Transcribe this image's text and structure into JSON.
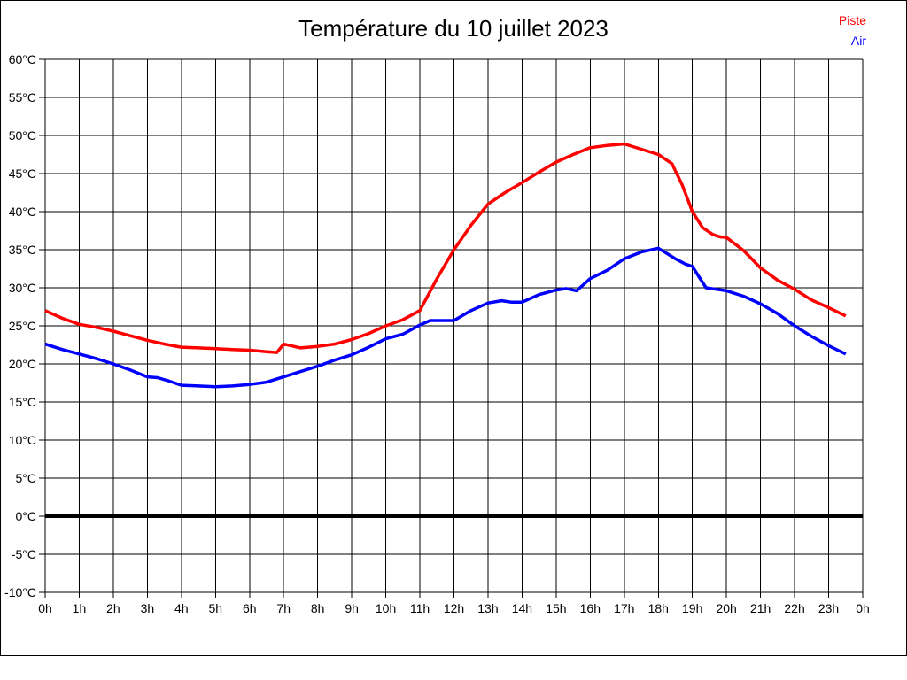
{
  "page": {
    "background": "#ffffff",
    "frame_border_color": "#000000"
  },
  "chart_data": {
    "type": "line",
    "title": "Température du 10 juillet 2023",
    "title_color": "#000000",
    "grid": true,
    "grid_color": "#000000",
    "x_axis": {
      "unit": "h",
      "range": [
        0,
        24
      ],
      "ticks": [
        {
          "value": 0,
          "label": "0h"
        },
        {
          "value": 1,
          "label": "1h"
        },
        {
          "value": 2,
          "label": "2h"
        },
        {
          "value": 3,
          "label": "3h"
        },
        {
          "value": 4,
          "label": "4h"
        },
        {
          "value": 5,
          "label": "5h"
        },
        {
          "value": 6,
          "label": "6h"
        },
        {
          "value": 7,
          "label": "7h"
        },
        {
          "value": 8,
          "label": "8h"
        },
        {
          "value": 9,
          "label": "9h"
        },
        {
          "value": 10,
          "label": "10h"
        },
        {
          "value": 11,
          "label": "11h"
        },
        {
          "value": 12,
          "label": "12h"
        },
        {
          "value": 13,
          "label": "13h"
        },
        {
          "value": 14,
          "label": "14h"
        },
        {
          "value": 15,
          "label": "15h"
        },
        {
          "value": 16,
          "label": "16h"
        },
        {
          "value": 17,
          "label": "17h"
        },
        {
          "value": 18,
          "label": "18h"
        },
        {
          "value": 19,
          "label": "19h"
        },
        {
          "value": 20,
          "label": "20h"
        },
        {
          "value": 21,
          "label": "21h"
        },
        {
          "value": 22,
          "label": "22h"
        },
        {
          "value": 23,
          "label": "23h"
        },
        {
          "value": 24,
          "label": "0h"
        }
      ]
    },
    "y_axis": {
      "unit": "°C",
      "range": [
        -10,
        60
      ],
      "zero_line_bold": true,
      "ticks": [
        {
          "value": 60,
          "label": "60°C"
        },
        {
          "value": 55,
          "label": "55°C"
        },
        {
          "value": 50,
          "label": "50°C"
        },
        {
          "value": 45,
          "label": "45°C"
        },
        {
          "value": 40,
          "label": "40°C"
        },
        {
          "value": 35,
          "label": "35°C"
        },
        {
          "value": 30,
          "label": "30°C"
        },
        {
          "value": 25,
          "label": "25°C"
        },
        {
          "value": 20,
          "label": "20°C"
        },
        {
          "value": 15,
          "label": "15°C"
        },
        {
          "value": 10,
          "label": "10°C"
        },
        {
          "value": 5,
          "label": "5°C"
        },
        {
          "value": 0,
          "label": "0°C"
        },
        {
          "value": -5,
          "label": "-5°C"
        },
        {
          "value": -10,
          "label": "-10°C"
        }
      ]
    },
    "legend": {
      "position": "top-right",
      "entries": [
        {
          "label": "Piste",
          "color": "#ff0000"
        },
        {
          "label": "Air",
          "color": "#0000ff"
        }
      ]
    },
    "series": [
      {
        "name": "Piste",
        "color": "#ff0000",
        "points": [
          [
            0,
            27.0
          ],
          [
            0.5,
            26.0
          ],
          [
            1,
            25.2
          ],
          [
            1.5,
            24.8
          ],
          [
            2,
            24.3
          ],
          [
            2.5,
            23.7
          ],
          [
            3,
            23.1
          ],
          [
            3.5,
            22.6
          ],
          [
            4,
            22.2
          ],
          [
            4.5,
            22.1
          ],
          [
            5,
            22.0
          ],
          [
            5.5,
            21.9
          ],
          [
            6,
            21.8
          ],
          [
            6.5,
            21.6
          ],
          [
            6.8,
            21.5
          ],
          [
            7,
            22.6
          ],
          [
            7.3,
            22.3
          ],
          [
            7.5,
            22.1
          ],
          [
            8,
            22.3
          ],
          [
            8.5,
            22.6
          ],
          [
            9,
            23.2
          ],
          [
            9.5,
            24.0
          ],
          [
            10,
            25.0
          ],
          [
            10.5,
            25.8
          ],
          [
            11,
            27.0
          ],
          [
            11.5,
            31.2
          ],
          [
            12,
            35.0
          ],
          [
            12.5,
            38.2
          ],
          [
            13,
            41.0
          ],
          [
            13.5,
            42.5
          ],
          [
            14,
            43.8
          ],
          [
            14.5,
            45.2
          ],
          [
            15,
            46.5
          ],
          [
            15.5,
            47.5
          ],
          [
            16,
            48.4
          ],
          [
            16.5,
            48.7
          ],
          [
            17,
            48.9
          ],
          [
            17.5,
            48.2
          ],
          [
            18,
            47.5
          ],
          [
            18.4,
            46.3
          ],
          [
            18.7,
            43.5
          ],
          [
            19,
            40.0
          ],
          [
            19.3,
            37.9
          ],
          [
            19.6,
            37.0
          ],
          [
            19.8,
            36.7
          ],
          [
            20,
            36.6
          ],
          [
            20.5,
            34.9
          ],
          [
            21,
            32.6
          ],
          [
            21.5,
            31.0
          ],
          [
            22,
            29.8
          ],
          [
            22.5,
            28.4
          ],
          [
            23,
            27.4
          ],
          [
            23.5,
            26.3
          ]
        ]
      },
      {
        "name": "Air",
        "color": "#0000ff",
        "points": [
          [
            0,
            22.6
          ],
          [
            0.5,
            21.9
          ],
          [
            1,
            21.3
          ],
          [
            1.5,
            20.7
          ],
          [
            2,
            20.0
          ],
          [
            2.5,
            19.2
          ],
          [
            3,
            18.3
          ],
          [
            3.3,
            18.2
          ],
          [
            3.6,
            17.8
          ],
          [
            4,
            17.2
          ],
          [
            4.5,
            17.1
          ],
          [
            5,
            17.0
          ],
          [
            5.5,
            17.1
          ],
          [
            6,
            17.3
          ],
          [
            6.5,
            17.6
          ],
          [
            7,
            18.3
          ],
          [
            7.5,
            19.0
          ],
          [
            8,
            19.7
          ],
          [
            8.5,
            20.5
          ],
          [
            9,
            21.2
          ],
          [
            9.5,
            22.2
          ],
          [
            10,
            23.3
          ],
          [
            10.5,
            23.9
          ],
          [
            11,
            25.1
          ],
          [
            11.3,
            25.7
          ],
          [
            12,
            25.7
          ],
          [
            12.5,
            27.0
          ],
          [
            13,
            28.0
          ],
          [
            13.4,
            28.3
          ],
          [
            13.7,
            28.1
          ],
          [
            14,
            28.1
          ],
          [
            14.5,
            29.1
          ],
          [
            15,
            29.7
          ],
          [
            15.3,
            29.9
          ],
          [
            15.6,
            29.6
          ],
          [
            16,
            31.2
          ],
          [
            16.5,
            32.3
          ],
          [
            17,
            33.8
          ],
          [
            17.5,
            34.7
          ],
          [
            18,
            35.2
          ],
          [
            18.5,
            33.8
          ],
          [
            18.8,
            33.1
          ],
          [
            19,
            32.8
          ],
          [
            19.2,
            31.4
          ],
          [
            19.4,
            30.0
          ],
          [
            19.7,
            29.8
          ],
          [
            20,
            29.6
          ],
          [
            20.5,
            28.9
          ],
          [
            21,
            27.9
          ],
          [
            21.5,
            26.6
          ],
          [
            22,
            25.0
          ],
          [
            22.5,
            23.6
          ],
          [
            23,
            22.4
          ],
          [
            23.5,
            21.3
          ]
        ]
      }
    ]
  }
}
